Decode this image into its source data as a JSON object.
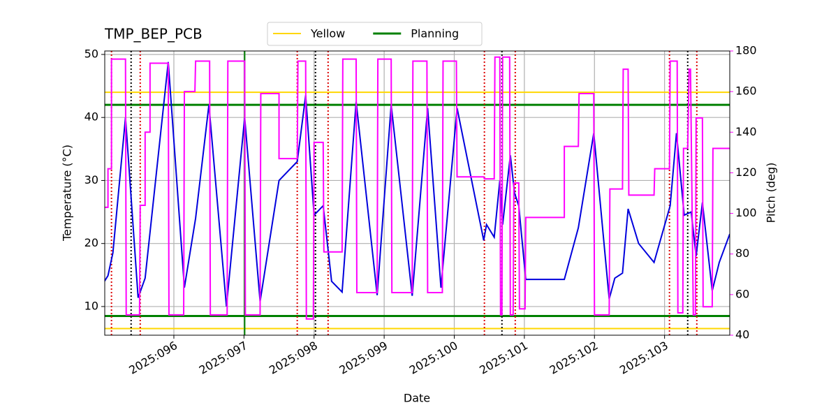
{
  "chart_data": {
    "type": "line",
    "title": "TMP_BEP_PCB",
    "xlabel": "Date",
    "ylabel": "Temperature (°C)",
    "y2label": "Pitch (deg)",
    "xlim": [
      95.014,
      103.93
    ],
    "xticks": [
      {
        "value": 96,
        "label": "2025:096"
      },
      {
        "value": 97,
        "label": "2025:097"
      },
      {
        "value": 98,
        "label": "2025:098"
      },
      {
        "value": 99,
        "label": "2025:099"
      },
      {
        "value": 100,
        "label": "2025:100"
      },
      {
        "value": 101,
        "label": "2025:101"
      },
      {
        "value": 102,
        "label": "2025:102"
      },
      {
        "value": 103,
        "label": "2025:103"
      }
    ],
    "ylim": [
      5.45,
      50.55
    ],
    "yticks": [
      10,
      20,
      30,
      40,
      50
    ],
    "y2lim": [
      40,
      180
    ],
    "y2ticks": [
      40,
      60,
      80,
      100,
      120,
      140,
      160,
      180
    ],
    "y2color": "#ff00ff",
    "grid": true,
    "legend": "upper center",
    "temperature": {
      "color": "#0000dd",
      "x": [
        95.01,
        95.06,
        95.13,
        95.31,
        95.49,
        95.59,
        95.92,
        96.15,
        96.31,
        96.5,
        96.75,
        97.01,
        97.23,
        97.5,
        97.76,
        97.88,
        98.0,
        98.13,
        98.25,
        98.4,
        98.6,
        98.9,
        99.1,
        99.4,
        99.62,
        99.81,
        100.04,
        100.42,
        100.46,
        100.57,
        100.65,
        100.69,
        100.8,
        100.86,
        100.92,
        101.02,
        101.57,
        101.77,
        101.99,
        102.21,
        102.29,
        102.4,
        102.48,
        102.63,
        102.85,
        103.08,
        103.17,
        103.28,
        103.38,
        103.45,
        103.54,
        103.68,
        103.78,
        103.93
      ],
      "values": [
        14.0,
        14.9,
        18.5,
        40,
        11.4,
        14.5,
        48.8,
        13,
        24,
        42,
        10,
        40,
        10.8,
        30,
        33,
        43.5,
        24.5,
        26,
        14,
        12.3,
        42.5,
        11.8,
        42,
        11.7,
        41.5,
        13,
        41.5,
        20.5,
        23,
        21,
        30,
        23,
        34,
        28,
        26,
        14.3,
        14.3,
        22.5,
        37.5,
        11.2,
        14.5,
        15.3,
        25.5,
        20,
        17,
        26,
        37.5,
        24.5,
        25,
        18,
        26.5,
        12.5,
        17,
        21.5
      ]
    },
    "pitch": {
      "color": "#ff00ff",
      "axis": "y2",
      "x": [
        95.01,
        95.06,
        95.06,
        95.11,
        95.11,
        95.31,
        95.32,
        95.51,
        95.52,
        95.59,
        95.59,
        95.66,
        95.66,
        95.92,
        95.93,
        96.14,
        96.15,
        96.3,
        96.31,
        96.51,
        96.52,
        96.76,
        96.77,
        97.01,
        97.02,
        97.23,
        97.24,
        97.5,
        97.5,
        97.76,
        97.77,
        97.88,
        97.89,
        97.99,
        98.0,
        98.13,
        98.14,
        98.4,
        98.41,
        98.6,
        98.61,
        98.9,
        98.91,
        99.1,
        99.11,
        99.4,
        99.41,
        99.61,
        99.62,
        99.83,
        99.84,
        100.03,
        100.04,
        100.42,
        100.43,
        100.57,
        100.58,
        100.65,
        100.66,
        100.68,
        100.69,
        100.79,
        100.8,
        100.84,
        100.85,
        100.92,
        100.93,
        101.01,
        101.02,
        101.57,
        101.57,
        101.77,
        101.78,
        101.99,
        102.0,
        102.21,
        102.22,
        102.4,
        102.41,
        102.48,
        102.49,
        102.85,
        102.86,
        103.07,
        103.08,
        103.18,
        103.19,
        103.26,
        103.27,
        103.33,
        103.35,
        103.37,
        103.41,
        103.44,
        103.45,
        103.54,
        103.55,
        103.68,
        103.69,
        103.93
      ],
      "values": [
        103,
        103,
        122,
        122,
        176,
        176,
        50,
        50,
        104,
        104,
        140,
        140,
        174,
        174,
        50,
        50,
        160,
        160,
        175,
        175,
        50,
        50,
        175,
        175,
        50,
        50,
        159,
        159,
        127,
        127,
        175,
        175,
        48,
        48,
        135,
        135,
        81,
        81,
        176,
        176,
        61,
        61,
        176,
        176,
        61,
        61,
        175,
        175,
        61,
        61,
        175,
        175,
        118,
        118,
        117,
        117,
        177,
        177,
        50,
        50,
        177,
        177,
        50,
        50,
        115,
        115,
        53,
        53,
        98,
        98,
        133,
        133,
        159,
        159,
        50,
        50,
        112,
        112,
        171,
        171,
        109,
        109,
        122,
        122,
        175,
        175,
        51,
        51,
        132,
        132,
        171,
        171,
        50,
        50,
        147,
        147,
        54,
        54,
        132,
        132
      ]
    },
    "limits": [
      {
        "name": "Yellow",
        "color": "#ffd700",
        "values": [
          44,
          6.5
        ]
      },
      {
        "name": "Planning",
        "color": "#008000",
        "values": [
          42,
          8.5
        ]
      }
    ],
    "vlines": [
      {
        "color": "#dd0000",
        "style": "dotted",
        "x": [
          95.11,
          95.52,
          97.76,
          98.2,
          100.43,
          100.87,
          103.07,
          103.46
        ]
      },
      {
        "color": "#000000",
        "style": "dotted",
        "x": [
          95.39,
          98.02,
          100.68,
          103.33
        ]
      },
      {
        "color": "#008000",
        "style": "solid",
        "x": [
          97.01
        ]
      }
    ]
  }
}
